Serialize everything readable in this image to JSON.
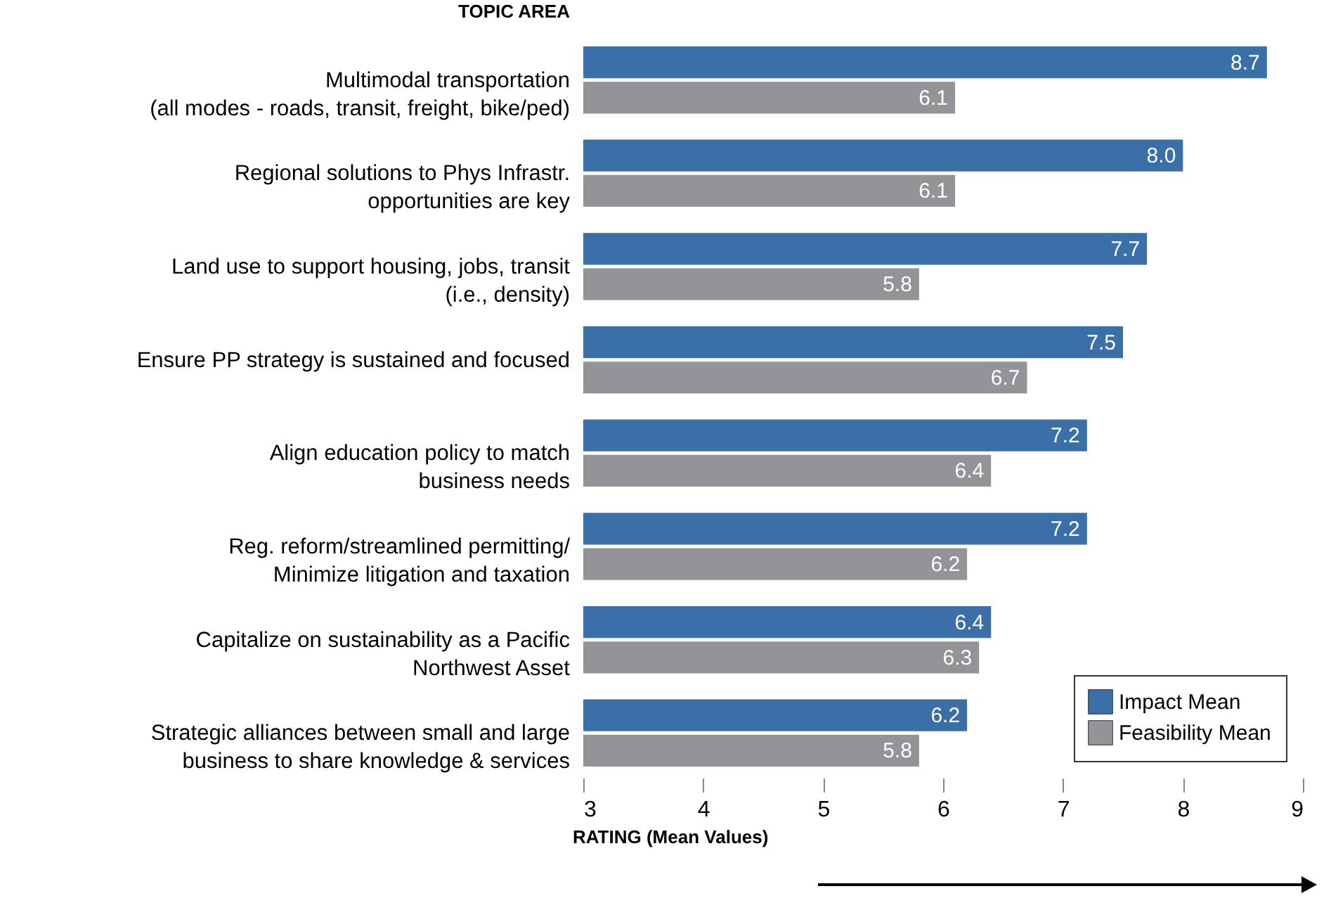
{
  "chart_data": {
    "type": "bar",
    "orientation": "horizontal",
    "ylabel": "TOPIC AREA",
    "xlabel": "RATING (Mean Values)",
    "categories": [
      "Multimodal transportation\n(all modes - roads, transit, freight, bike/ped)",
      "Regional solutions to Phys Infrastr.\nopportunities are key",
      "Land use to support housing, jobs, transit\n(i.e., density)",
      "Ensure PP strategy is sustained and focused",
      "Align education policy to match\nbusiness needs",
      "Reg. reform/streamlined permitting/\nMinimize litigation and taxation",
      "Capitalize on sustainability as a Pacific\nNorthwest Asset",
      "Strategic alliances between small and large\nbusiness to share knowledge & services"
    ],
    "series": [
      {
        "name": "Impact Mean",
        "color": "#3a6fa8",
        "values": [
          8.7,
          8.0,
          7.7,
          7.5,
          7.2,
          7.2,
          6.4,
          6.2
        ],
        "value_labels": [
          "8.7",
          "8.0",
          "7.7",
          "7.5",
          "7.2",
          "7.2",
          "6.4",
          "6.2"
        ]
      },
      {
        "name": "Feasibility Mean",
        "color": "#929497",
        "values": [
          6.1,
          6.1,
          5.8,
          6.7,
          6.4,
          6.2,
          6.3,
          5.8
        ],
        "value_labels": [
          "6.1",
          "6.1",
          "5.8",
          "6.7",
          "6.4",
          "6.2",
          "6.3",
          "5.8"
        ]
      }
    ],
    "xlim": [
      3,
      9
    ],
    "xticks": [
      3,
      4,
      5,
      6,
      7,
      8,
      9
    ],
    "legend": "bottom right",
    "grid": false
  }
}
